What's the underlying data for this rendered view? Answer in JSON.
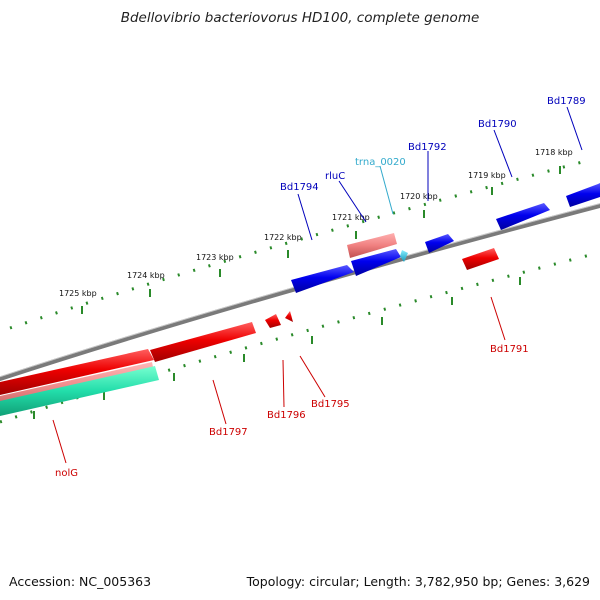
{
  "title": "Bdellovibrio bacteriovorus HD100, complete genome",
  "footer": {
    "accession": "Accession: NC_005363",
    "topology": "Topology: circular; Length: 3,782,950 bp; Genes: 3,629"
  },
  "colors": {
    "backbone": "#7a7a7a",
    "tick": "#2a8a2a",
    "forward_gene": "#0000ee",
    "reverse_gene": "#ee0000",
    "pseudo_gene": "#f08080",
    "trna": "#33bbdd",
    "rrna_like": "#22ddaa",
    "forward_label": "#0000bb",
    "reverse_label": "#cc0000",
    "trna_label": "#33aacc"
  },
  "ruler_labels": [
    "1718 kbp",
    "1719 kbp",
    "1720 kbp",
    "1721 kbp",
    "1722 kbp",
    "1723 kbp",
    "1724 kbp",
    "1725 kbp"
  ],
  "gene_labels": {
    "bd1789": "Bd1789",
    "bd1790": "Bd1790",
    "bd1792": "Bd1792",
    "trna_0020": "trna_0020",
    "rluc": "rluC",
    "bd1794": "Bd1794",
    "bd1791": "Bd1791",
    "bd1795": "Bd1795",
    "bd1796": "Bd1796",
    "bd1797": "Bd1797",
    "nolg": "nolG"
  }
}
